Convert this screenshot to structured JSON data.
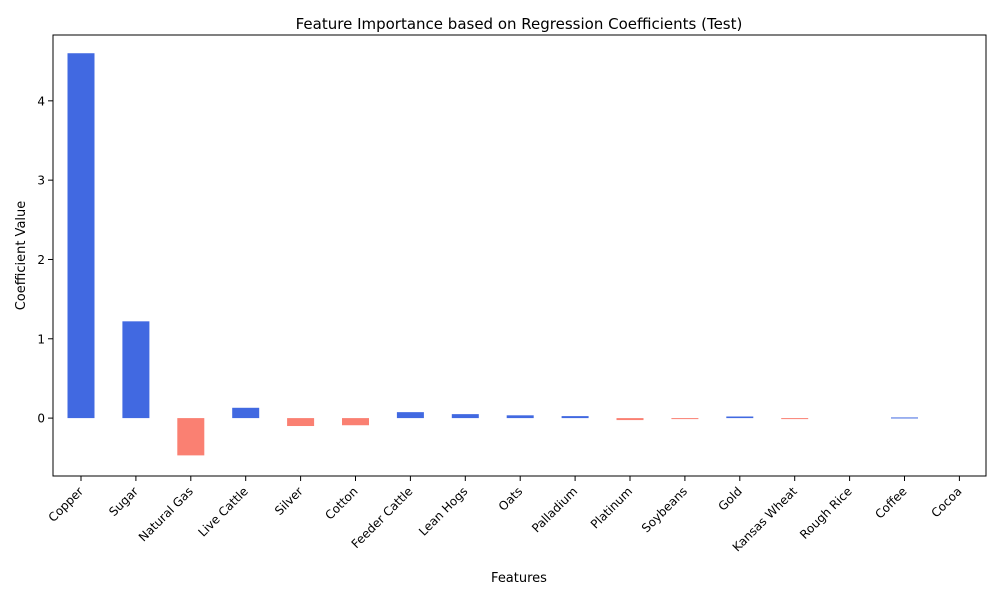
{
  "chart_data": {
    "type": "bar",
    "title": "Feature Importance based on Regression Coefficients (Test)",
    "xlabel": "Features",
    "ylabel": "Coefficient Value",
    "categories": [
      "Copper",
      "Sugar",
      "Natural Gas",
      "Live Cattle",
      "Silver",
      "Cotton",
      "Feeder Cattle",
      "Lean Hogs",
      "Oats",
      "Palladium",
      "Platinum",
      "Soybeans",
      "Gold",
      "Kansas Wheat",
      "Rough Rice",
      "Coffee",
      "Cocoa"
    ],
    "values": [
      4.6,
      1.22,
      -0.47,
      0.13,
      -0.1,
      -0.09,
      0.075,
      0.05,
      0.035,
      0.025,
      -0.025,
      -0.012,
      0.02,
      -0.01,
      0.0,
      0.008,
      0.0
    ],
    "ylim": [
      -0.73,
      4.83
    ],
    "yticks": [
      0,
      1,
      2,
      3,
      4
    ],
    "colors": {
      "positive": "#4169E1",
      "negative": "#FA8072"
    },
    "grid": false,
    "legend": "none"
  }
}
